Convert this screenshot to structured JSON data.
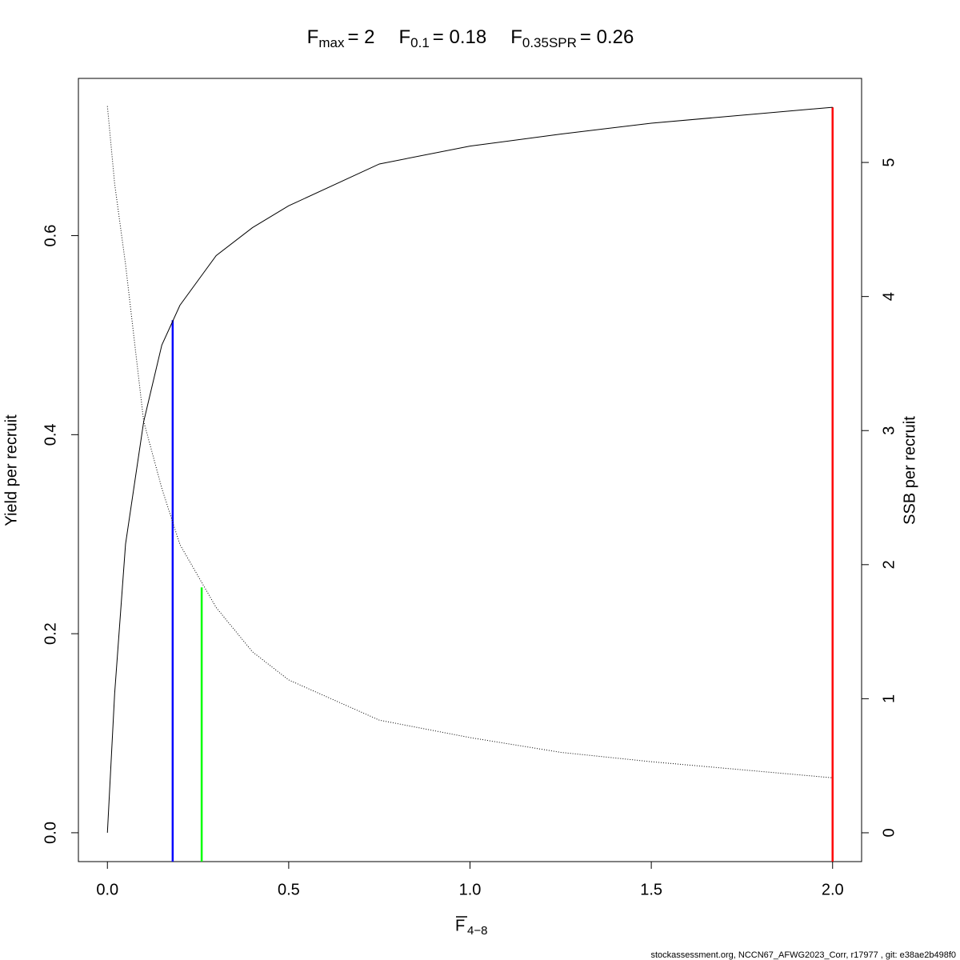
{
  "chart_data": {
    "type": "line",
    "title": [
      {
        "text": "F"
      },
      {
        "text": "max",
        "sub": true
      },
      {
        "text": "= 2"
      },
      {
        "text": "F"
      },
      {
        "text": "0.1",
        "sub": true
      },
      {
        "text": "= 0.18"
      },
      {
        "text": "F"
      },
      {
        "text": "0.35SPR",
        "sub": true
      },
      {
        "text": "= 0.26"
      }
    ],
    "xlabel": "F",
    "xlabel_sub": "4−8",
    "ylabel": "Yield per recruit",
    "y2label": "SSB per recruit",
    "footer": "stockassessment.org, NCCN67_AFWG2023_Corr, r17977 , git: e38ae2b498f0",
    "x": [
      0,
      0.02,
      0.05,
      0.1,
      0.15,
      0.2,
      0.3,
      0.4,
      0.5,
      0.75,
      1.0,
      1.25,
      1.5,
      1.75,
      2.0
    ],
    "series": [
      {
        "name": "Yield per recruit",
        "color": "#000000",
        "style": "solid",
        "values": [
          0,
          0.14,
          0.29,
          0.413,
          0.49,
          0.53,
          0.58,
          0.608,
          0.63,
          0.672,
          0.69,
          0.702,
          0.713,
          0.721,
          0.729
        ]
      },
      {
        "name": "SSB per recruit",
        "color": "#000000",
        "style": "dotted",
        "axis": "y2",
        "values": [
          5.42,
          4.84,
          4.24,
          3.07,
          2.57,
          2.15,
          1.68,
          1.35,
          1.14,
          0.84,
          0.71,
          0.6,
          0.53,
          0.47,
          0.41
        ]
      }
    ],
    "reference_lines": [
      {
        "x": 0.18,
        "top": 0.515,
        "color": "#0000ff"
      },
      {
        "x": 0.26,
        "top": 1.83,
        "axis": "y2",
        "color": "#00ff00"
      },
      {
        "x": 2,
        "top": 0.729,
        "color": "#ff0000"
      }
    ],
    "xlim": [
      -0.08,
      2.08
    ],
    "ylim": [
      -0.029,
      0.758
    ],
    "y2lim": [
      -0.215,
      5.627
    ],
    "xticks": [
      {
        "value": 0,
        "label": "0.0"
      },
      {
        "value": 0.5,
        "label": "0.5"
      },
      {
        "value": 1,
        "label": "1.0"
      },
      {
        "value": 1.5,
        "label": "1.5"
      },
      {
        "value": 2,
        "label": "2.0"
      }
    ],
    "yticks": [
      {
        "value": 0,
        "label": "0.0"
      },
      {
        "value": 0.2,
        "label": "0.2"
      },
      {
        "value": 0.4,
        "label": "0.4"
      },
      {
        "value": 0.6,
        "label": "0.6"
      }
    ],
    "y2ticks": [
      0,
      1,
      2,
      3,
      4,
      5
    ]
  }
}
